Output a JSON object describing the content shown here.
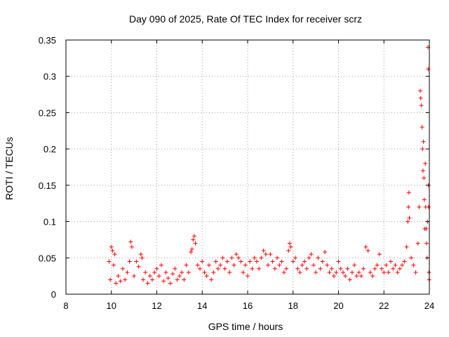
{
  "chart_data": {
    "type": "scatter",
    "title": "Day 090 of 2025, Rate Of TEC Index for receiver scrz",
    "xlabel": "GPS time / hours",
    "ylabel": "ROTI / TECUs",
    "xlim": [
      8,
      24
    ],
    "ylim": [
      0,
      0.35
    ],
    "xticks": [
      8,
      10,
      12,
      14,
      16,
      18,
      20,
      22,
      24
    ],
    "xtick_labels": [
      "8",
      "10",
      "12",
      "14",
      "16",
      "18",
      "20",
      "22",
      "24"
    ],
    "yticks": [
      0,
      0.05,
      0.1,
      0.15,
      0.2,
      0.25,
      0.3,
      0.35
    ],
    "ytick_labels": [
      "0",
      "0.05",
      "0.1",
      "0.15",
      "0.2",
      "0.25",
      "0.3",
      "0.35"
    ],
    "grid": true,
    "marker": "+",
    "color": "#ff0000",
    "series": [
      {
        "name": "ROTI",
        "points": [
          [
            9.9,
            0.045
          ],
          [
            9.95,
            0.02
          ],
          [
            10.0,
            0.065
          ],
          [
            10.05,
            0.06
          ],
          [
            10.1,
            0.04
          ],
          [
            10.15,
            0.055
          ],
          [
            10.2,
            0.015
          ],
          [
            10.3,
            0.025
          ],
          [
            10.4,
            0.018
          ],
          [
            10.5,
            0.035
          ],
          [
            10.6,
            0.02
          ],
          [
            10.7,
            0.03
          ],
          [
            10.8,
            0.045
          ],
          [
            10.85,
            0.072
          ],
          [
            10.9,
            0.065
          ],
          [
            11.0,
            0.025
          ],
          [
            11.1,
            0.045
          ],
          [
            11.2,
            0.038
          ],
          [
            11.3,
            0.055
          ],
          [
            11.35,
            0.05
          ],
          [
            11.4,
            0.02
          ],
          [
            11.5,
            0.03
          ],
          [
            11.6,
            0.015
          ],
          [
            11.7,
            0.025
          ],
          [
            11.8,
            0.02
          ],
          [
            11.9,
            0.03
          ],
          [
            12.0,
            0.035
          ],
          [
            12.1,
            0.025
          ],
          [
            12.2,
            0.04
          ],
          [
            12.3,
            0.018
          ],
          [
            12.4,
            0.03
          ],
          [
            12.5,
            0.022
          ],
          [
            12.6,
            0.015
          ],
          [
            12.7,
            0.028
          ],
          [
            12.8,
            0.035
          ],
          [
            12.9,
            0.02
          ],
          [
            13.0,
            0.025
          ],
          [
            13.1,
            0.03
          ],
          [
            13.2,
            0.02
          ],
          [
            13.3,
            0.04
          ],
          [
            13.4,
            0.03
          ],
          [
            13.5,
            0.058
          ],
          [
            13.55,
            0.062
          ],
          [
            13.6,
            0.075
          ],
          [
            13.65,
            0.08
          ],
          [
            13.7,
            0.07
          ],
          [
            13.8,
            0.04
          ],
          [
            13.9,
            0.035
          ],
          [
            14.0,
            0.045
          ],
          [
            14.1,
            0.03
          ],
          [
            14.2,
            0.025
          ],
          [
            14.3,
            0.04
          ],
          [
            14.4,
            0.02
          ],
          [
            14.5,
            0.03
          ],
          [
            14.6,
            0.045
          ],
          [
            14.7,
            0.035
          ],
          [
            14.8,
            0.04
          ],
          [
            14.9,
            0.05
          ],
          [
            15.0,
            0.035
          ],
          [
            15.1,
            0.045
          ],
          [
            15.2,
            0.03
          ],
          [
            15.3,
            0.05
          ],
          [
            15.4,
            0.04
          ],
          [
            15.5,
            0.055
          ],
          [
            15.6,
            0.05
          ],
          [
            15.7,
            0.045
          ],
          [
            15.8,
            0.03
          ],
          [
            15.9,
            0.04
          ],
          [
            16.0,
            0.025
          ],
          [
            16.1,
            0.045
          ],
          [
            16.2,
            0.035
          ],
          [
            16.3,
            0.05
          ],
          [
            16.4,
            0.045
          ],
          [
            16.5,
            0.035
          ],
          [
            16.6,
            0.05
          ],
          [
            16.7,
            0.06
          ],
          [
            16.8,
            0.055
          ],
          [
            16.9,
            0.04
          ],
          [
            17.0,
            0.055
          ],
          [
            17.1,
            0.045
          ],
          [
            17.2,
            0.035
          ],
          [
            17.3,
            0.05
          ],
          [
            17.4,
            0.04
          ],
          [
            17.5,
            0.045
          ],
          [
            17.6,
            0.03
          ],
          [
            17.7,
            0.035
          ],
          [
            17.8,
            0.06
          ],
          [
            17.85,
            0.07
          ],
          [
            17.9,
            0.065
          ],
          [
            18.0,
            0.045
          ],
          [
            18.1,
            0.05
          ],
          [
            18.2,
            0.035
          ],
          [
            18.3,
            0.03
          ],
          [
            18.4,
            0.04
          ],
          [
            18.5,
            0.045
          ],
          [
            18.6,
            0.035
          ],
          [
            18.7,
            0.05
          ],
          [
            18.8,
            0.055
          ],
          [
            18.9,
            0.04
          ],
          [
            19.0,
            0.03
          ],
          [
            19.1,
            0.05
          ],
          [
            19.2,
            0.035
          ],
          [
            19.3,
            0.045
          ],
          [
            19.4,
            0.058
          ],
          [
            19.5,
            0.04
          ],
          [
            19.6,
            0.03
          ],
          [
            19.7,
            0.035
          ],
          [
            19.8,
            0.025
          ],
          [
            19.9,
            0.03
          ],
          [
            20.0,
            0.045
          ],
          [
            20.1,
            0.035
          ],
          [
            20.2,
            0.03
          ],
          [
            20.3,
            0.025
          ],
          [
            20.4,
            0.035
          ],
          [
            20.5,
            0.02
          ],
          [
            20.6,
            0.03
          ],
          [
            20.7,
            0.04
          ],
          [
            20.8,
            0.025
          ],
          [
            20.9,
            0.03
          ],
          [
            21.0,
            0.025
          ],
          [
            21.1,
            0.035
          ],
          [
            21.2,
            0.065
          ],
          [
            21.3,
            0.06
          ],
          [
            21.4,
            0.03
          ],
          [
            21.5,
            0.025
          ],
          [
            21.6,
            0.035
          ],
          [
            21.7,
            0.04
          ],
          [
            21.8,
            0.055
          ],
          [
            21.9,
            0.035
          ],
          [
            22.0,
            0.03
          ],
          [
            22.1,
            0.04
          ],
          [
            22.2,
            0.03
          ],
          [
            22.3,
            0.045
          ],
          [
            22.4,
            0.035
          ],
          [
            22.5,
            0.04
          ],
          [
            22.6,
            0.03
          ],
          [
            22.7,
            0.035
          ],
          [
            22.8,
            0.04
          ],
          [
            22.9,
            0.045
          ],
          [
            23.0,
            0.065
          ],
          [
            23.05,
            0.1
          ],
          [
            23.08,
            0.12
          ],
          [
            23.1,
            0.14
          ],
          [
            23.12,
            0.105
          ],
          [
            23.2,
            0.05
          ],
          [
            23.3,
            0.04
          ],
          [
            23.4,
            0.03
          ],
          [
            23.5,
            0.07
          ],
          [
            23.55,
            0.12
          ],
          [
            23.6,
            0.28
          ],
          [
            23.62,
            0.27
          ],
          [
            23.65,
            0.26
          ],
          [
            23.68,
            0.23
          ],
          [
            23.7,
            0.2
          ],
          [
            23.72,
            0.17
          ],
          [
            23.74,
            0.21
          ],
          [
            23.76,
            0.16
          ],
          [
            23.78,
            0.13
          ],
          [
            23.8,
            0.09
          ],
          [
            23.82,
            0.18
          ],
          [
            23.84,
            0.12
          ],
          [
            23.86,
            0.09
          ],
          [
            23.88,
            0.07
          ],
          [
            23.9,
            0.05
          ],
          [
            23.92,
            0.1
          ],
          [
            23.94,
            0.34
          ],
          [
            23.95,
            0.31
          ],
          [
            23.96,
            0.15
          ],
          [
            23.97,
            0.12
          ],
          [
            23.98,
            0.03
          ],
          [
            23.99,
            0.02
          ]
        ]
      }
    ]
  }
}
